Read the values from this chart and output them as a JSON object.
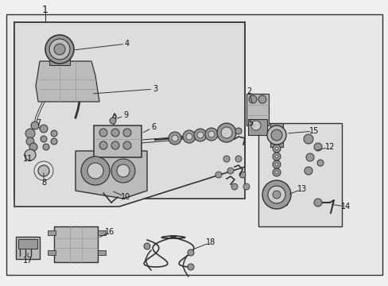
{
  "bg_color": "#f0f0f0",
  "box_fill": "#e8e8e8",
  "white": "#ffffff",
  "line_color": "#333333",
  "label_color": "#111111",
  "figsize": [
    4.89,
    3.6
  ],
  "dpi": 100,
  "label_fs": 7.0
}
